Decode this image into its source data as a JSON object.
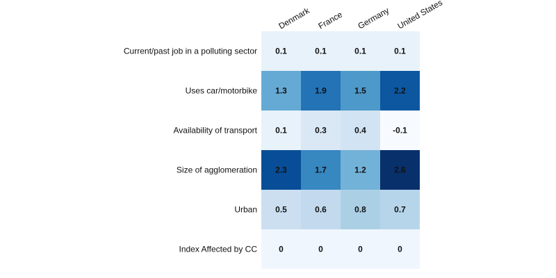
{
  "chart_data": {
    "type": "heatmap",
    "title": "",
    "xlabel": "",
    "ylabel": "",
    "columns": [
      "Denmark",
      "France",
      "Germany",
      "United States"
    ],
    "rows": [
      "Current/past job in a polluting sector",
      "Uses car/motorbike",
      "Availability of transport",
      "Size of agglomeration",
      "Urban",
      "Index Affected by CC"
    ],
    "values": [
      [
        0.1,
        0.1,
        0.1,
        0.1
      ],
      [
        1.3,
        1.9,
        1.5,
        2.2
      ],
      [
        0.1,
        0.3,
        0.4,
        -0.1
      ],
      [
        2.3,
        1.7,
        1.2,
        2.6
      ],
      [
        0.5,
        0.6,
        0.8,
        0.7
      ],
      [
        0,
        0,
        0,
        0
      ]
    ],
    "colormap": "Blues",
    "color_range": [
      -0.1,
      2.6
    ],
    "colors": {
      "low": "#f7fbff",
      "high": "#08306b"
    },
    "legend": "none"
  }
}
